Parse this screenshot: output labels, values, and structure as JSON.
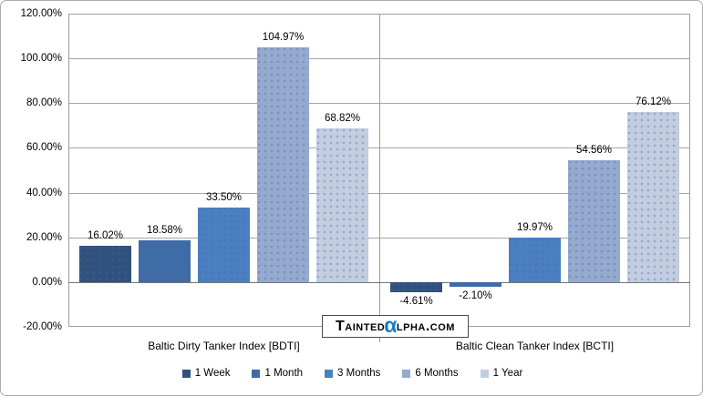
{
  "chart_data": {
    "type": "bar",
    "title": "",
    "categories": [
      "Baltic Dirty Tanker Index [BDTI]",
      "Baltic Clean Tanker Index [BCTI]"
    ],
    "series": [
      {
        "name": "1 Week",
        "color": "#30527d",
        "values": [
          16.02,
          -4.61
        ],
        "labels": [
          "16.02%",
          "-4.61%"
        ]
      },
      {
        "name": "1 Month",
        "color": "#3e6ca5",
        "values": [
          18.58,
          -2.1
        ],
        "labels": [
          "18.58%",
          "-2.10%"
        ]
      },
      {
        "name": "3 Months",
        "color": "#4a80bf",
        "values": [
          33.5,
          19.97
        ],
        "labels": [
          "33.50%",
          "19.97%"
        ]
      },
      {
        "name": "6 Months",
        "color": "#94abcd",
        "values": [
          104.97,
          54.56
        ],
        "labels": [
          "104.97%",
          "54.56%"
        ]
      },
      {
        "name": "1 Year",
        "color": "#c2cedf",
        "values": [
          68.82,
          76.12
        ],
        "labels": [
          "68.82%",
          "76.12%"
        ]
      }
    ],
    "ylim": [
      -20,
      120
    ],
    "ytick_step": 20,
    "yticks": [
      {
        "value": 120,
        "label": "120.00%"
      },
      {
        "value": 100,
        "label": "100.00%"
      },
      {
        "value": 80,
        "label": "80.00%"
      },
      {
        "value": 60,
        "label": "60.00%"
      },
      {
        "value": 40,
        "label": "40.00%"
      },
      {
        "value": 20,
        "label": "20.00%"
      },
      {
        "value": 0,
        "label": "0.00%"
      },
      {
        "value": -20,
        "label": "-20.00%"
      }
    ],
    "grid": "horizontal",
    "legend_position": "bottom"
  },
  "watermark": {
    "text_before_alpha": "Tainted",
    "alpha_char": "α",
    "text_after_alpha": "lpha.com",
    "alpha_color": "#1580c4"
  }
}
